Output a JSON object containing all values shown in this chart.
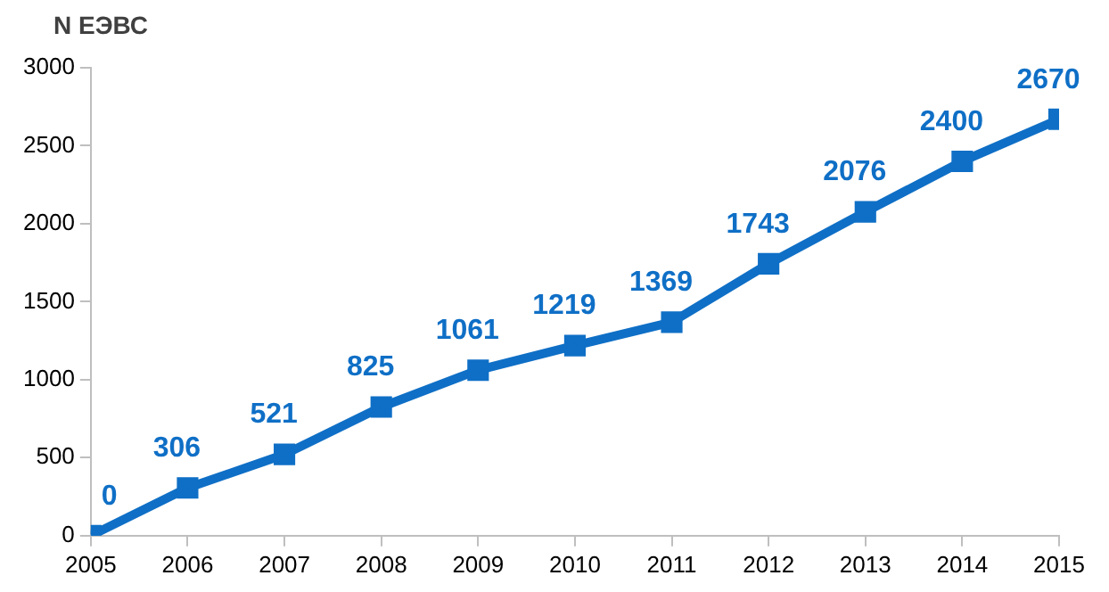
{
  "chart_data": {
    "type": "line",
    "ylabel": "N ЕЭВС",
    "x": [
      2005,
      2006,
      2007,
      2008,
      2009,
      2010,
      2011,
      2012,
      2013,
      2014,
      2015
    ],
    "series": [
      {
        "color": "#0f6fc6",
        "values": [
          0,
          306,
          521,
          825,
          1061,
          1219,
          1369,
          1743,
          2076,
          2400,
          2670
        ]
      }
    ],
    "xlim": [
      2005,
      2015
    ],
    "xticks": [
      2005,
      2006,
      2007,
      2008,
      2009,
      2010,
      2011,
      2012,
      2013,
      2014,
      2015
    ],
    "ylim": [
      0,
      3000
    ],
    "yticks": [
      0,
      500,
      1000,
      1500,
      2000,
      2500,
      3000
    ],
    "grid": false,
    "legend": false,
    "marker": "square",
    "line_style": "solid",
    "data_labels": true
  }
}
